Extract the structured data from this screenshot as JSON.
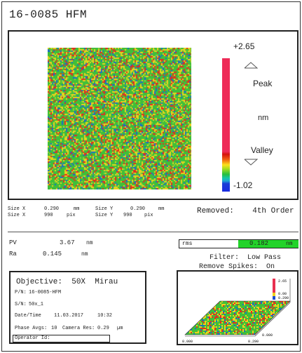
{
  "header": {
    "title": "16-0085 HFM"
  },
  "colorbar": {
    "max_label": "+2.65",
    "min_label": "-1.02",
    "peak_label": "Peak",
    "unit_label": "nm",
    "valley_label": "Valley"
  },
  "size_info": {
    "size_x_label": "Size X",
    "size_x_value": "0.290",
    "size_x_unit": "mm",
    "size_x_pix_value": "990",
    "pix_unit": "pix",
    "size_y_label": "Size Y",
    "size_y_value": "0.290",
    "size_y_unit": "mm",
    "size_y_pix_value": "990"
  },
  "removed": {
    "label": "Removed:",
    "value": "4th Order"
  },
  "stats": {
    "pv_label": "PV",
    "pv_value": "3.67",
    "ra_label": "Ra",
    "ra_value": "0.145",
    "unit": "nm",
    "rms_label": "rms",
    "rms_value": "0.182",
    "rms_unit": "nm"
  },
  "filter": {
    "filter_label": "Filter:",
    "filter_value": "Low Pass",
    "spikes_label": "Remove Spikes:",
    "spikes_value": "On"
  },
  "objective": {
    "objective_label": "Objective:",
    "objective_value": "50X  Mirau",
    "pn_label": "P/N:",
    "pn_value": "16-0085-HFM",
    "sn_label": "S/N:",
    "sn_value": "50x_1",
    "datetime_label": "Date/Time",
    "date_value": "11.03.2017",
    "time_value": "10:32",
    "phase_label": "Phase Avgs:",
    "phase_value": "10",
    "camera_label": "Camera Res:",
    "camera_value": "0.29",
    "camera_unit": "µm",
    "operator_label": "Operator Id:"
  },
  "isometric": {
    "z_top": "2.65",
    "z_mid1": "0.00",
    "z_mid2": "0.290",
    "x_left": "0.000",
    "x_right": "0.290",
    "y_label": "0.000"
  },
  "palette": {
    "green": "#3fbf3a",
    "yellow": "#e8d21e",
    "red": "#e03020",
    "blue": "#1a6cc8",
    "rms_green": "#22d32a"
  }
}
